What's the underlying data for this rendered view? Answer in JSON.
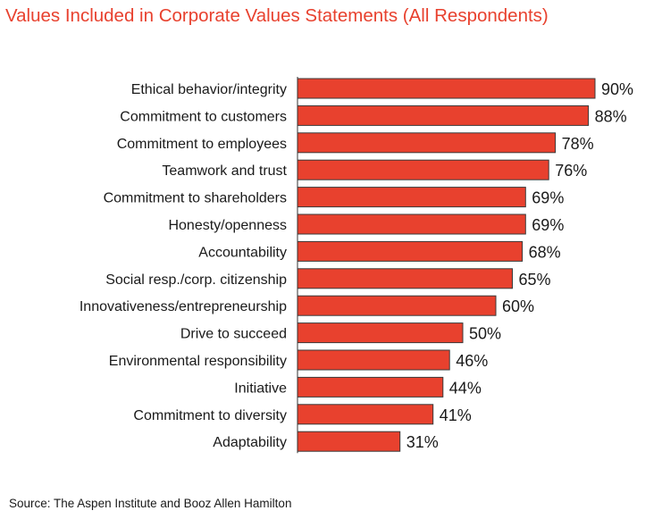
{
  "chart_data": {
    "type": "bar",
    "orientation": "horizontal",
    "title": "Values Included in Corporate Values Statements (All Respondents)",
    "categories": [
      "Ethical behavior/integrity",
      "Commitment to customers",
      "Commitment to employees",
      "Teamwork and trust",
      "Commitment to shareholders",
      "Honesty/openness",
      "Accountability",
      "Social resp./corp. citizenship",
      "Innovativeness/entrepreneurship",
      "Drive to succeed",
      "Environmental responsibility",
      "Initiative",
      "Commitment to diversity",
      "Adaptability"
    ],
    "values": [
      90,
      88,
      78,
      76,
      69,
      69,
      68,
      65,
      60,
      50,
      46,
      44,
      41,
      31
    ],
    "value_suffix": "%",
    "xlim": [
      0,
      90
    ],
    "bar_color": "#e8412e",
    "source": "Source: The Aspen Institute and Booz Allen Hamilton"
  }
}
